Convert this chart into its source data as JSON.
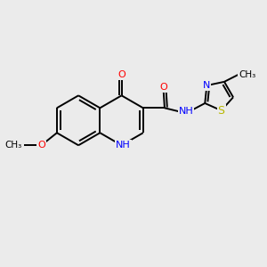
{
  "bg_color": "#ebebeb",
  "bond_color": "#000000",
  "figsize": [
    3.0,
    3.0
  ],
  "dpi": 100,
  "lw": 1.4,
  "fs": 8.0,
  "xlim": [
    0,
    10
  ],
  "ylim": [
    0,
    10
  ]
}
